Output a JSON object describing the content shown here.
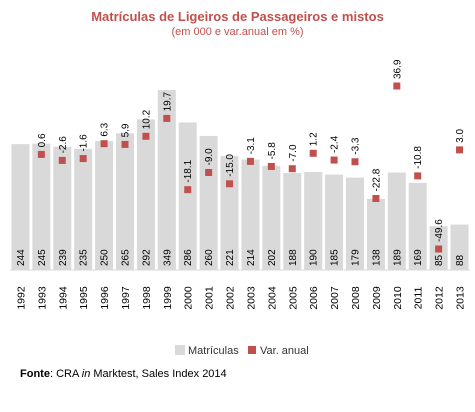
{
  "chart_data": {
    "type": "bar",
    "title": "Matrículas de Ligeiros de Passageiros e mistos",
    "subtitle": "(em 000 e var.anual em %)",
    "categories": [
      "1992",
      "1993",
      "1994",
      "1995",
      "1996",
      "1997",
      "1998",
      "1999",
      "2000",
      "2001",
      "2002",
      "2003",
      "2004",
      "2005",
      "2006",
      "2007",
      "2008",
      "2009",
      "2010",
      "2011",
      "2012",
      "2013"
    ],
    "series": [
      {
        "name": "Matrículas",
        "type": "bar",
        "color": "#d9d9d9",
        "values": [
          244,
          245,
          239,
          235,
          250,
          265,
          292,
          349,
          286,
          260,
          221,
          214,
          202,
          188,
          190,
          185,
          179,
          138,
          189,
          169,
          85,
          88
        ],
        "labels": [
          "244",
          "245",
          "239",
          "235",
          "250",
          "265",
          "292",
          "349",
          "286",
          "260",
          "221",
          "214",
          "202",
          "188",
          "190",
          "185",
          "179",
          "138",
          "189",
          "169",
          "85",
          "88"
        ]
      },
      {
        "name": "Var. anual",
        "type": "marker",
        "color": "#c0504d",
        "values": [
          null,
          0.6,
          -2.6,
          -1.6,
          6.3,
          5.9,
          10.2,
          19.7,
          -18.1,
          -9.0,
          -15.0,
          -3.1,
          -5.8,
          -7.0,
          1.2,
          -2.4,
          -3.3,
          -22.8,
          36.9,
          -10.8,
          -49.6,
          3.0
        ],
        "labels": [
          "",
          "0.6",
          "-2.6",
          "-1.6",
          "6.3",
          "5.9",
          "10.2",
          "19.7",
          "-18.1",
          "-9.0",
          "-15.0",
          "-3.1",
          "-5.8",
          "-7.0",
          "1.2",
          "-2.4",
          "-3.3",
          "-22.8",
          "36.9",
          "-10.8",
          "-49.6",
          "3.0"
        ]
      }
    ],
    "legend": {
      "position": "bottom"
    },
    "grid": false
  },
  "source": {
    "label": "Fonte",
    "text_before": ": CRA ",
    "text_italic": "in",
    "text_after": " Marktest, Sales Index 2014"
  }
}
